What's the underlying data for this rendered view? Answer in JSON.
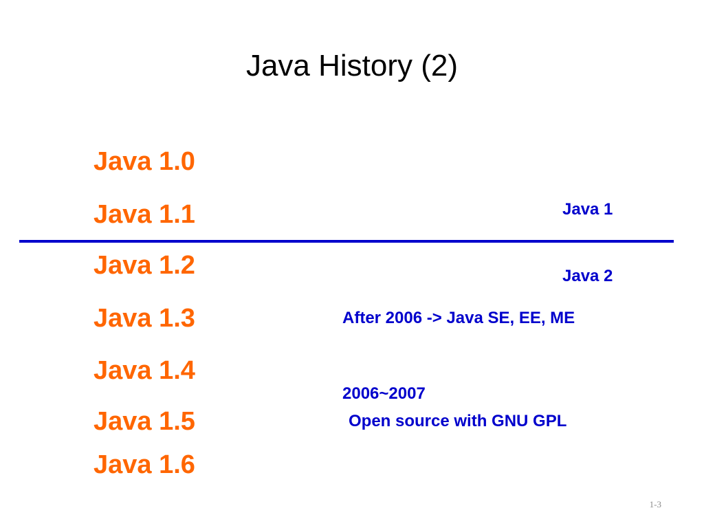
{
  "title": "Java History (2)",
  "versions": [
    "Java 1.0",
    "Java 1.1",
    "Java 1.2",
    "Java 1.3",
    "Java 1.4",
    "Java 1.5",
    "Java 1.6"
  ],
  "notes": {
    "java1": "Java 1",
    "java2": "Java 2",
    "after2006": "After 2006 -> Java SE, EE, ME",
    "years": "2006~2007",
    "open_source": "Open source with GNU GPL"
  },
  "slide_number": "1-3",
  "colors": {
    "version_text": "#FF6600",
    "note_text": "#0000CC",
    "divider": "#0000CC"
  }
}
